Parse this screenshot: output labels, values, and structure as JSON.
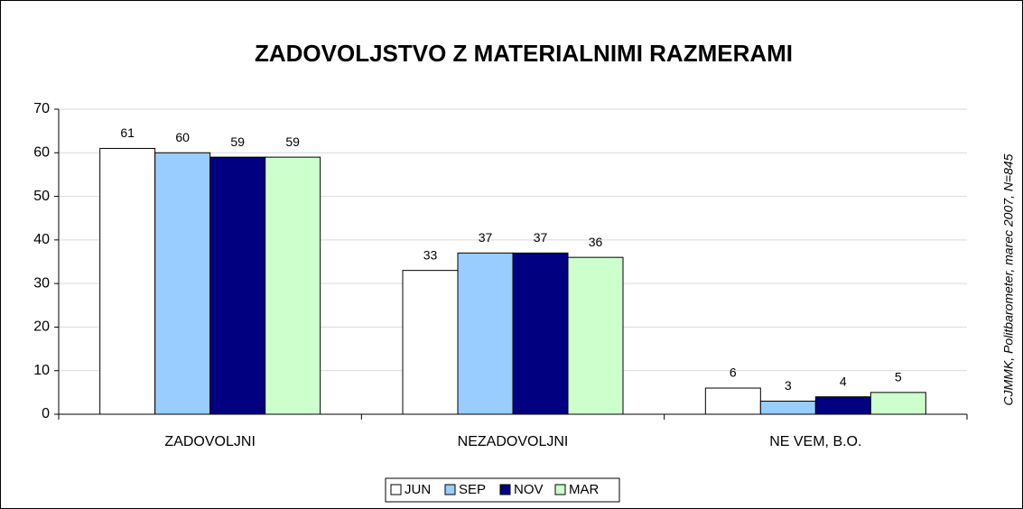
{
  "chart_data": {
    "type": "bar",
    "title": "ZADOVOLJSTVO Z MATERIALNIMI RAZMERAMI",
    "side_note": "CJMMK, Politbarometer, marec 2007, N=845",
    "categories": [
      "ZADOVOLJNI",
      "NEZADOVOLJNI",
      "NE VEM, B.O."
    ],
    "series": [
      {
        "name": "JUN",
        "color": "#ffffff",
        "values": [
          61,
          33,
          6
        ]
      },
      {
        "name": "SEP",
        "color": "#99ccff",
        "values": [
          60,
          37,
          3
        ]
      },
      {
        "name": "NOV",
        "color": "#000080",
        "values": [
          59,
          37,
          4
        ]
      },
      {
        "name": "MAR",
        "color": "#ccffcc",
        "values": [
          59,
          36,
          5
        ]
      }
    ],
    "ylim": [
      0,
      70
    ],
    "yticks": [
      0,
      10,
      20,
      30,
      40,
      50,
      60,
      70
    ],
    "grid": true,
    "legend": "bottom"
  }
}
